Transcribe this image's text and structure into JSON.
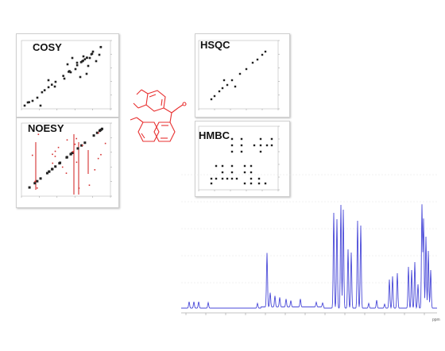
{
  "panels": {
    "cosy": {
      "title": "COSY"
    },
    "noesy": {
      "title": "NOESY"
    },
    "hsqc": {
      "title": "HSQC"
    },
    "hmbc": {
      "title": "HMBC"
    }
  },
  "colors": {
    "spectrum_line": "#4a4ad8",
    "molecule": "#e83030",
    "noesy_red": "#d43030",
    "grid": "#c8c8c8"
  },
  "spectrum": {
    "type": "1H NMR spectrum",
    "axis_unit_label": "ppm"
  }
}
